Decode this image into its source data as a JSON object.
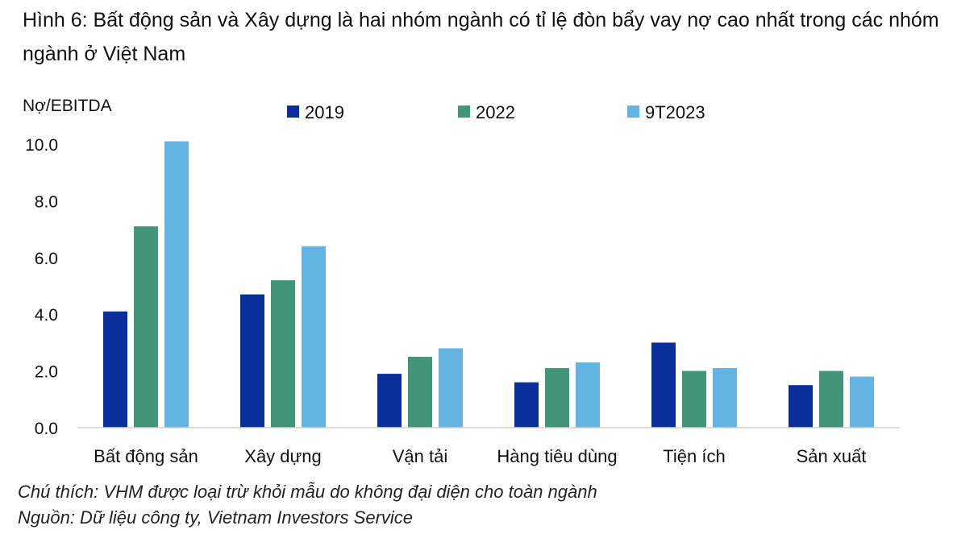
{
  "title": "Hình 6: Bất động sản và Xây dựng là hai nhóm ngành có tỉ lệ đòn bẩy vay nợ cao nhất trong các nhóm ngành ở Việt Nam",
  "note": "Chú thích: VHM được loại trừ khỏi mẫu do không đại diện cho toàn ngành",
  "source": "Nguồn: Dữ liệu công ty, Vietnam Investors Service",
  "chart_data": {
    "type": "bar",
    "ylabel": "Nợ/EBITDA",
    "xlabel": "",
    "ylim": [
      0,
      10
    ],
    "yticks": [
      "0.0",
      "2.0",
      "4.0",
      "6.0",
      "8.0",
      "10.0"
    ],
    "grid": false,
    "legend_position": "top",
    "categories": [
      "Bất động sản",
      "Xây dựng",
      "Vận tải",
      "Hàng tiêu dùng",
      "Tiện ích",
      "Sản xuất"
    ],
    "series": [
      {
        "name": "2019",
        "color": "#0b2f9a",
        "values": [
          4.1,
          4.7,
          1.9,
          1.6,
          3.0,
          1.5
        ]
      },
      {
        "name": "2022",
        "color": "#43957a",
        "values": [
          7.1,
          5.2,
          2.5,
          2.1,
          2.0,
          2.0
        ]
      },
      {
        "name": "9T2023",
        "color": "#63b3e3",
        "values": [
          10.1,
          6.4,
          2.8,
          2.3,
          2.1,
          1.8
        ]
      }
    ]
  }
}
